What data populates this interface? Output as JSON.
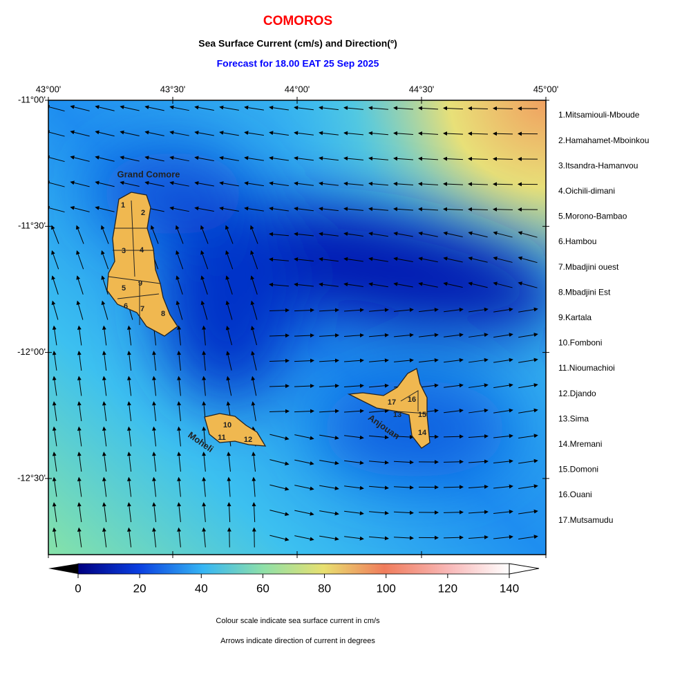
{
  "header": {
    "title": "COMOROS",
    "subtitle": "Sea Surface Current (cm/s) and Direction(º)",
    "forecast": "Forecast for  18.00 EAT 25 Sep 2025"
  },
  "map": {
    "lon_labels": [
      "43°00'",
      "43°30'",
      "44°00'",
      "44°30'",
      "45°00'"
    ],
    "lat_labels": [
      "-11°00'",
      "-11°30'",
      "-12°00'",
      "-12°30'"
    ],
    "islands": [
      "Grand Comore",
      "Moheli",
      "Anjouan"
    ],
    "region_numbers": [
      "1",
      "2",
      "3",
      "4",
      "5",
      "6",
      "7",
      "8",
      "9",
      "10",
      "11",
      "12",
      "13",
      "14",
      "15",
      "16",
      "17"
    ],
    "legend": [
      "1.Mitsamiouli-Mboude",
      "2.Hamahamet-Mboinkou",
      "3.Itsandra-Hamanvou",
      "4.Oichili-dimani",
      "5.Morono-Bambao",
      "6.Hambou",
      "7.Mbadjini ouest",
      "8.Mbadjini Est",
      "9.Kartala",
      "10.Fomboni",
      "11.Nioumachioi",
      "12.Djando",
      "13.Sima",
      "14.Mremani",
      "15.Domoni",
      "16.Ouani",
      "17.Mutsamudu"
    ]
  },
  "colorbar": {
    "ticks": [
      0,
      20,
      40,
      60,
      80,
      100,
      120,
      140
    ]
  },
  "notes": [
    "Colour scale indicate sea surface current in cm/s",
    "Arrows indicate direction of current in degrees"
  ]
}
